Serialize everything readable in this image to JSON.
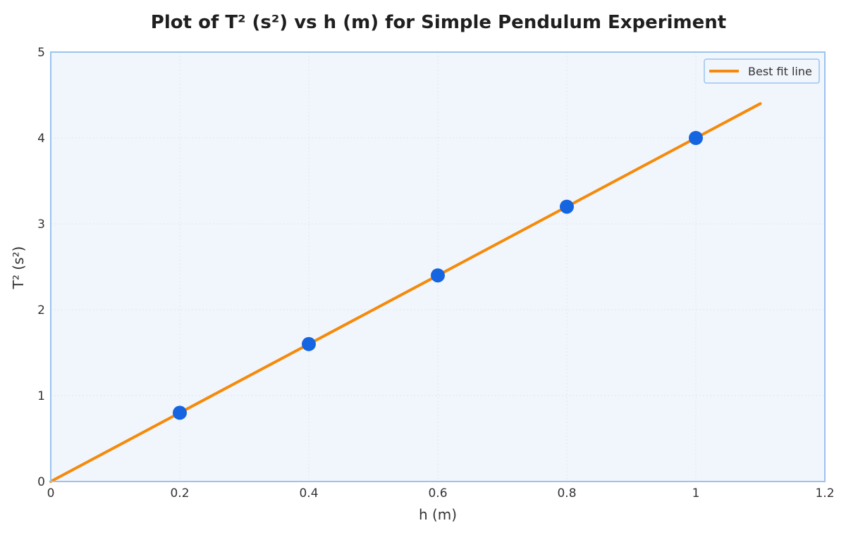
{
  "chart_data": {
    "type": "scatter",
    "title": "Plot of T² (s²) vs h (m) for Simple Pendulum Experiment",
    "xlabel": "h (m)",
    "ylabel": "T² (s²)",
    "xlim": [
      0,
      1.2
    ],
    "ylim": [
      0,
      5
    ],
    "x_ticks": [
      0,
      0.2,
      0.4,
      0.6,
      0.8,
      1,
      1.2
    ],
    "x_tick_labels": [
      "0",
      "0.2",
      "0.4",
      "0.6",
      "0.8",
      "1",
      "1.2"
    ],
    "y_ticks": [
      0,
      1,
      2,
      3,
      4,
      5
    ],
    "y_tick_labels": [
      "0",
      "1",
      "2",
      "3",
      "4",
      "5"
    ],
    "grid": true,
    "legend": "top-right",
    "series": [
      {
        "kind": "scatter",
        "x": [
          0.2,
          0.4,
          0.6,
          0.8,
          1.0
        ],
        "y": [
          0.8,
          1.6,
          2.4,
          3.2,
          4.0
        ],
        "color": "#1565e0"
      },
      {
        "name": "Best fit line",
        "kind": "line",
        "x": [
          0,
          1.1
        ],
        "y": [
          0,
          4.4
        ],
        "color": "#f58a0a"
      }
    ],
    "colors": {
      "plot_background": "#f1f6fd",
      "plot_border": "#9cc3ee",
      "grid": "#dce6f2",
      "legend_border": "#9cc3ee"
    }
  }
}
